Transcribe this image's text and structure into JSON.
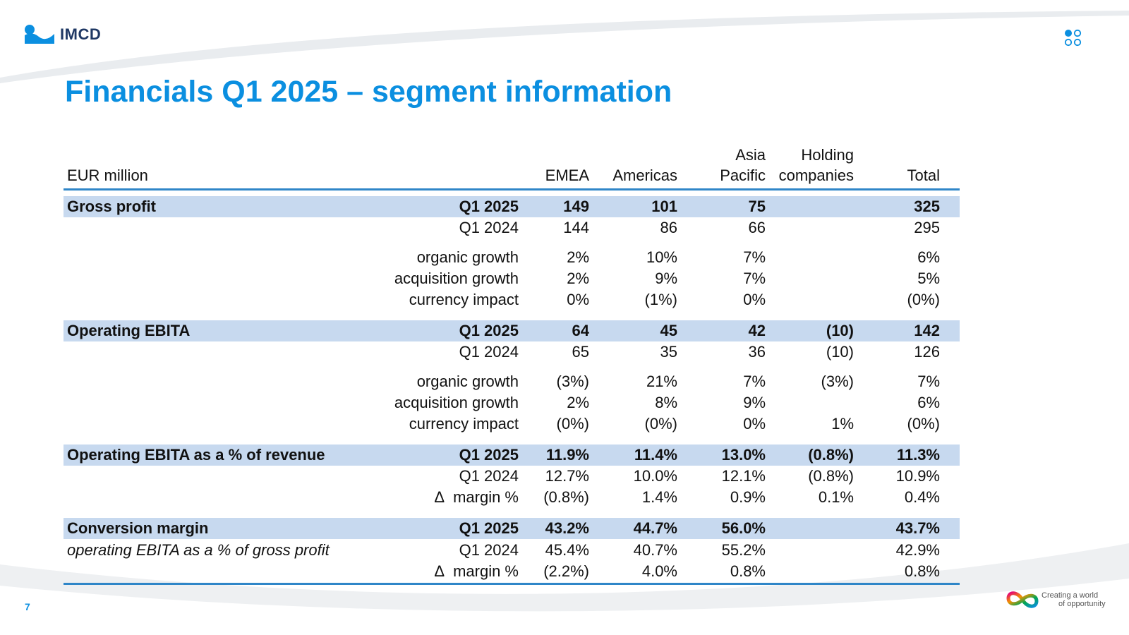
{
  "brand": {
    "name": "IMCD",
    "tagline_line1": "Creating a world",
    "tagline_line2": "of opportunity",
    "primary_color": "#0b8fe0",
    "band_color": "#c7d9ef"
  },
  "slide": {
    "title": "Financials Q1 2025 – segment information",
    "page_number": "7"
  },
  "table": {
    "unit_label": "EUR million",
    "columns": {
      "emea": "EMEA",
      "americas": "Americas",
      "asia_l1": "Asia",
      "asia_l2": "Pacific",
      "holding_l1": "Holding",
      "holding_l2": "companies",
      "total": "Total"
    },
    "sections": [
      {
        "title": "Gross profit",
        "subtitle": "",
        "rows": [
          {
            "period": "Q1 2025",
            "emea": "149",
            "americas": "101",
            "asia": "75",
            "holding": "",
            "total": "325"
          },
          {
            "period": "Q1 2024",
            "emea": "144",
            "americas": "86",
            "asia": "66",
            "holding": "",
            "total": "295"
          },
          {
            "period": "organic growth",
            "emea": "2%",
            "americas": "10%",
            "asia": "7%",
            "holding": "",
            "total": "6%"
          },
          {
            "period": "acquisition growth",
            "emea": "2%",
            "americas": "9%",
            "asia": "7%",
            "holding": "",
            "total": "5%"
          },
          {
            "period": "currency impact",
            "emea": "0%",
            "americas": "(1%)",
            "asia": "0%",
            "holding": "",
            "total": "(0%)"
          }
        ]
      },
      {
        "title": "Operating EBITA",
        "subtitle": "",
        "rows": [
          {
            "period": "Q1 2025",
            "emea": "64",
            "americas": "45",
            "asia": "42",
            "holding": "(10)",
            "total": "142"
          },
          {
            "period": "Q1 2024",
            "emea": "65",
            "americas": "35",
            "asia": "36",
            "holding": "(10)",
            "total": "126"
          },
          {
            "period": "organic growth",
            "emea": "(3%)",
            "americas": "21%",
            "asia": "7%",
            "holding": "(3%)",
            "total": "7%"
          },
          {
            "period": "acquisition growth",
            "emea": "2%",
            "americas": "8%",
            "asia": "9%",
            "holding": "",
            "total": "6%"
          },
          {
            "period": "currency impact",
            "emea": "(0%)",
            "americas": "(0%)",
            "asia": "0%",
            "holding": "1%",
            "total": "(0%)"
          }
        ]
      },
      {
        "title": "Operating EBITA as a % of revenue",
        "subtitle": "",
        "rows": [
          {
            "period": "Q1 2025",
            "emea": "11.9%",
            "americas": "11.4%",
            "asia": "13.0%",
            "holding": "(0.8%)",
            "total": "11.3%"
          },
          {
            "period": "Q1 2024",
            "emea": "12.7%",
            "americas": "10.0%",
            "asia": "12.1%",
            "holding": "(0.8%)",
            "total": "10.9%"
          },
          {
            "delta": "Δ",
            "period": "margin %",
            "emea": "(0.8%)",
            "americas": "1.4%",
            "asia": "0.9%",
            "holding": "0.1%",
            "total": "0.4%"
          }
        ]
      },
      {
        "title": "Conversion margin",
        "subtitle": "operating EBITA as a % of gross profit",
        "rows": [
          {
            "period": "Q1 2025",
            "emea": "43.2%",
            "americas": "44.7%",
            "asia": "56.0%",
            "holding": "",
            "total": "43.7%"
          },
          {
            "period": "Q1 2024",
            "emea": "45.4%",
            "americas": "40.7%",
            "asia": "55.2%",
            "holding": "",
            "total": "42.9%"
          },
          {
            "delta": "Δ",
            "period": "margin %",
            "emea": "(2.2%)",
            "americas": "4.0%",
            "asia": "0.8%",
            "holding": "",
            "total": "0.8%"
          }
        ]
      }
    ]
  }
}
